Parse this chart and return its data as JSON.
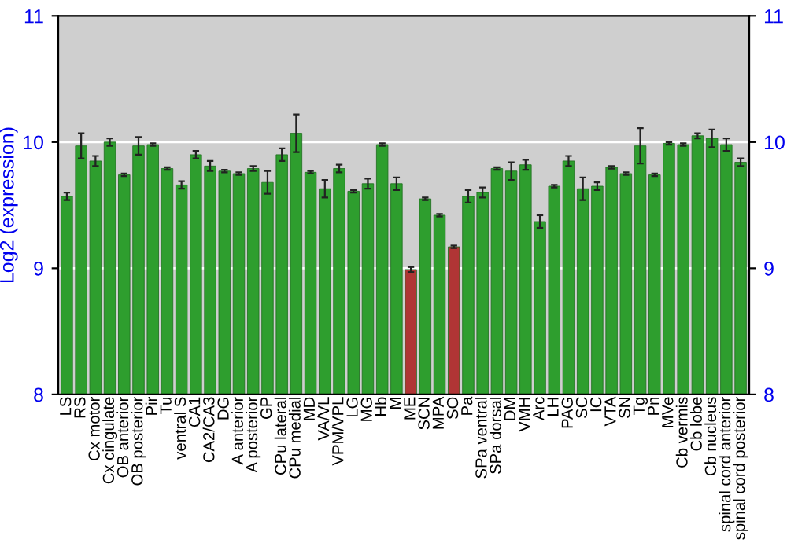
{
  "chart_data": {
    "type": "bar",
    "ylabel": "Log2 (expression)",
    "categories": [
      "LS",
      "RS",
      "Cx motor",
      "Cx cingulate",
      "OB anterior",
      "OB posterior",
      "Pir",
      "Tu",
      "ventral S",
      "CA1",
      "CA2/CA3",
      "DG",
      "A anterior",
      "A posterior",
      "GP",
      "CPu lateral",
      "CPu medial",
      "MD",
      "VA/VL",
      "VPM/VPL",
      "LG",
      "MG",
      "Hb",
      "M",
      "ME",
      "SCN",
      "MPA",
      "SO",
      "Pa",
      "SPa ventral",
      "SPa dorsal",
      "DM",
      "VMH",
      "Arc",
      "LH",
      "PAG",
      "SC",
      "IC",
      "VTA",
      "SN",
      "Tg",
      "Pn",
      "MVe",
      "Cb vermis",
      "Cb lobe",
      "Cb nucleus",
      "spinal cord anterior",
      "spinal cord posterior"
    ],
    "values": [
      9.57,
      9.97,
      9.85,
      10.0,
      9.74,
      9.97,
      9.98,
      9.79,
      9.66,
      9.9,
      9.81,
      9.77,
      9.75,
      9.79,
      9.68,
      9.9,
      10.07,
      9.76,
      9.63,
      9.79,
      9.61,
      9.67,
      9.98,
      9.67,
      8.99,
      9.55,
      9.42,
      9.17,
      9.57,
      9.6,
      9.79,
      9.77,
      9.82,
      9.37,
      9.65,
      9.85,
      9.63,
      9.65,
      9.8,
      9.75,
      9.97,
      9.74,
      9.99,
      9.98,
      10.05,
      10.03,
      9.98,
      9.84
    ],
    "errors": [
      0.03,
      0.1,
      0.04,
      0.03,
      0.01,
      0.07,
      0.01,
      0.01,
      0.03,
      0.03,
      0.04,
      0.01,
      0.01,
      0.02,
      0.09,
      0.05,
      0.15,
      0.01,
      0.07,
      0.03,
      0.01,
      0.04,
      0.01,
      0.05,
      0.02,
      0.01,
      0.01,
      0.01,
      0.05,
      0.04,
      0.01,
      0.07,
      0.04,
      0.05,
      0.01,
      0.04,
      0.09,
      0.03,
      0.01,
      0.01,
      0.14,
      0.01,
      0.01,
      0.01,
      0.02,
      0.07,
      0.05,
      0.03
    ],
    "colors": [
      "#2e9e2e",
      "#2e9e2e",
      "#2e9e2e",
      "#2e9e2e",
      "#2e9e2e",
      "#2e9e2e",
      "#2e9e2e",
      "#2e9e2e",
      "#2e9e2e",
      "#2e9e2e",
      "#2e9e2e",
      "#2e9e2e",
      "#2e9e2e",
      "#2e9e2e",
      "#2e9e2e",
      "#2e9e2e",
      "#2e9e2e",
      "#2e9e2e",
      "#2e9e2e",
      "#2e9e2e",
      "#2e9e2e",
      "#2e9e2e",
      "#2e9e2e",
      "#2e9e2e",
      "#b03535",
      "#2e9e2e",
      "#2e9e2e",
      "#b03535",
      "#2e9e2e",
      "#2e9e2e",
      "#2e9e2e",
      "#2e9e2e",
      "#2e9e2e",
      "#2e9e2e",
      "#2e9e2e",
      "#2e9e2e",
      "#2e9e2e",
      "#2e9e2e",
      "#2e9e2e",
      "#2e9e2e",
      "#2e9e2e",
      "#2e9e2e",
      "#2e9e2e",
      "#2e9e2e",
      "#2e9e2e",
      "#2e9e2e",
      "#2e9e2e",
      "#2e9e2e"
    ],
    "ylim": [
      8,
      11
    ],
    "yticks": [
      8,
      9,
      10,
      11
    ],
    "y2lim": [
      8,
      11
    ],
    "y2ticks": [
      8,
      9,
      10,
      11
    ],
    "grid": "y"
  }
}
